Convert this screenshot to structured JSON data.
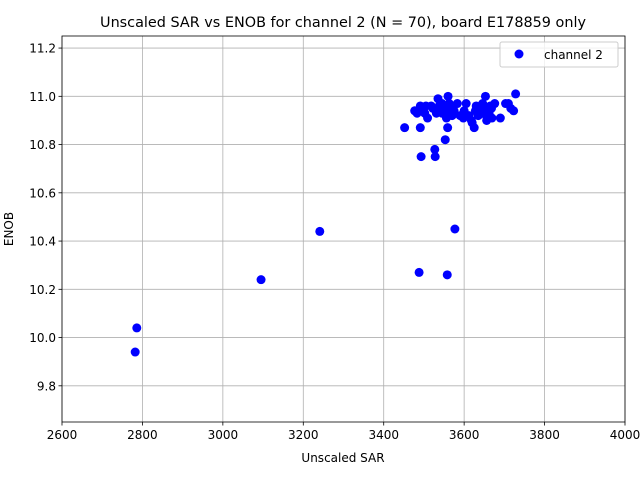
{
  "chart_data": {
    "type": "scatter",
    "title": "Unscaled SAR vs ENOB for channel 2 (N = 70), board E178859 only",
    "xlabel": "Unscaled SAR",
    "ylabel": "ENOB",
    "xlim": [
      2600,
      4000
    ],
    "ylim": [
      9.65,
      11.25
    ],
    "xticks": [
      2600,
      2800,
      3000,
      3200,
      3400,
      3600,
      3800,
      4000
    ],
    "yticks": [
      9.8,
      10.0,
      10.2,
      10.4,
      10.6,
      10.8,
      11.0,
      11.2
    ],
    "xtick_labels": [
      "2600",
      "2800",
      "3000",
      "3200",
      "3400",
      "3600",
      "3800",
      "4000"
    ],
    "ytick_labels": [
      "9.8",
      "10.0",
      "10.2",
      "10.4",
      "10.6",
      "10.8",
      "11.0",
      "11.2"
    ],
    "grid": true,
    "legend_placement": "top-right",
    "marker_color": "#0000ff",
    "series": [
      {
        "name": "channel 2",
        "color": "#0000ff",
        "points": [
          [
            2782,
            9.94
          ],
          [
            2786,
            10.04
          ],
          [
            3095,
            10.24
          ],
          [
            3241,
            10.44
          ],
          [
            3452,
            10.87
          ],
          [
            3488,
            10.27
          ],
          [
            3577,
            10.45
          ],
          [
            3558,
            10.26
          ],
          [
            3493,
            10.75
          ],
          [
            3528,
            10.75
          ],
          [
            3527,
            10.78
          ],
          [
            3553,
            10.82
          ],
          [
            3491,
            10.87
          ],
          [
            3559,
            10.87
          ],
          [
            3620,
            10.89
          ],
          [
            3625,
            10.87
          ],
          [
            3477,
            10.94
          ],
          [
            3483,
            10.93
          ],
          [
            3491,
            10.96
          ],
          [
            3498,
            10.94
          ],
          [
            3505,
            10.96
          ],
          [
            3509,
            10.91
          ],
          [
            3518,
            10.96
          ],
          [
            3531,
            10.93
          ],
          [
            3535,
            10.99
          ],
          [
            3538,
            10.96
          ],
          [
            3541,
            10.95
          ],
          [
            3545,
            10.97
          ],
          [
            3550,
            10.94
          ],
          [
            3554,
            10.93
          ],
          [
            3556,
            10.91
          ],
          [
            3560,
            11.0
          ],
          [
            3563,
            10.97
          ],
          [
            3566,
            10.95
          ],
          [
            3570,
            10.92
          ],
          [
            3575,
            10.94
          ],
          [
            3583,
            10.97
          ],
          [
            3590,
            10.92
          ],
          [
            3598,
            10.91
          ],
          [
            3605,
            10.97
          ],
          [
            3612,
            10.92
          ],
          [
            3618,
            10.9
          ],
          [
            3628,
            10.94
          ],
          [
            3635,
            10.92
          ],
          [
            3641,
            10.95
          ],
          [
            3646,
            10.97
          ],
          [
            3650,
            10.93
          ],
          [
            3653,
            11.0
          ],
          [
            3656,
            10.9
          ],
          [
            3659,
            10.95
          ],
          [
            3662,
            10.93
          ],
          [
            3665,
            10.96
          ],
          [
            3669,
            10.91
          ],
          [
            3676,
            10.97
          ],
          [
            3690,
            10.91
          ],
          [
            3703,
            10.97
          ],
          [
            3710,
            10.97
          ],
          [
            3716,
            10.95
          ],
          [
            3723,
            10.94
          ],
          [
            3728,
            11.01
          ],
          [
            3655,
            10.92
          ],
          [
            3630,
            10.96
          ],
          [
            3600,
            10.94
          ],
          [
            3548,
            10.96
          ],
          [
            3522,
            10.95
          ],
          [
            3502,
            10.93
          ],
          [
            3572,
            10.93
          ],
          [
            3640,
            10.94
          ],
          [
            3668,
            10.95
          ],
          [
            3545,
            10.93
          ]
        ]
      }
    ]
  }
}
